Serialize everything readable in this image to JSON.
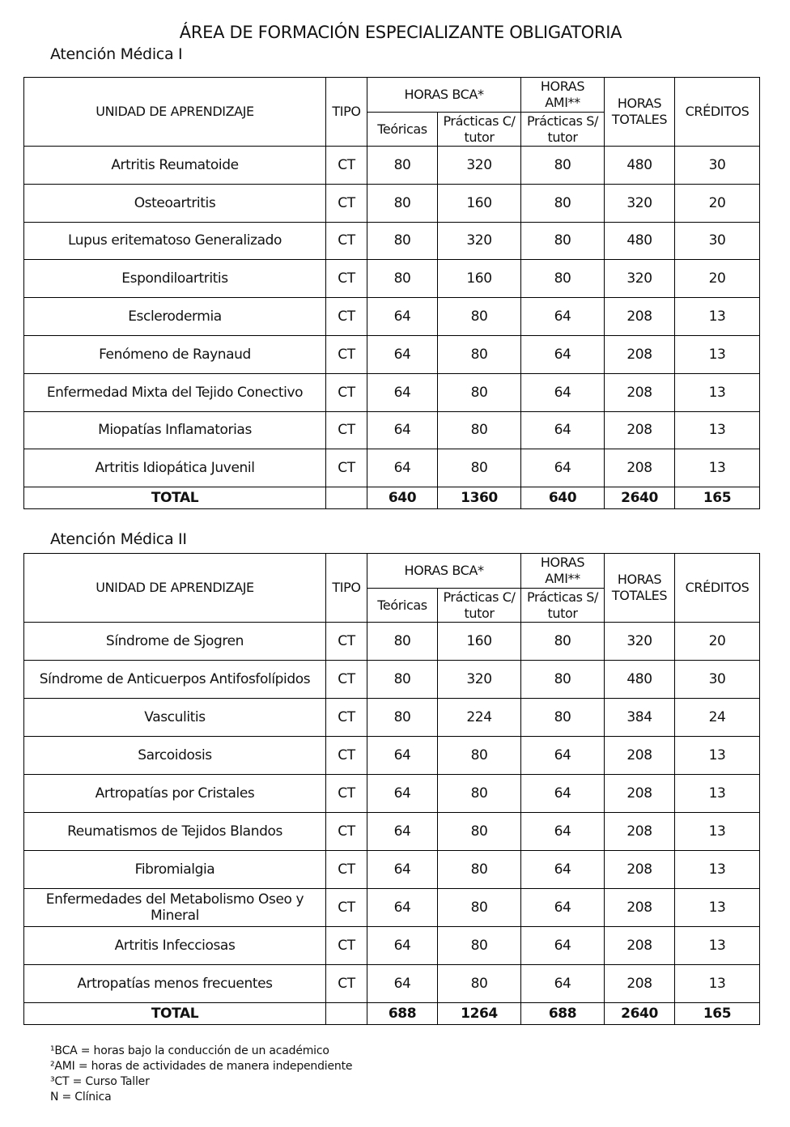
{
  "title": "ÁREA DE FORMACIÓN ESPECIALIZANTE OBLIGATORIA",
  "headers": {
    "unidad": "UNIDAD DE APRENDIZAJE",
    "tipo": "TIPO",
    "horas_bca": "HORAS  BCA*",
    "horas_ami": "HORAS AMI**",
    "horas_totales": "HORAS TOTALES",
    "creditos": "CRÉDITOS",
    "teoricas": "Teóricas",
    "practicas_c": "Prácticas C/ tutor",
    "practicas_s": "Prácticas S/ tutor"
  },
  "sections": [
    {
      "subtitle": "Atención Médica I",
      "rows": [
        [
          "Artritis Reumatoide",
          "CT",
          "80",
          "320",
          "80",
          "480",
          "30"
        ],
        [
          "Osteoartritis",
          "CT",
          "80",
          "160",
          "80",
          "320",
          "20"
        ],
        [
          "Lupus eritematoso Generalizado",
          "CT",
          "80",
          "320",
          "80",
          "480",
          "30"
        ],
        [
          "Espondiloartritis",
          "CT",
          "80",
          "160",
          "80",
          "320",
          "20"
        ],
        [
          "Esclerodermia",
          "CT",
          "64",
          "80",
          "64",
          "208",
          "13"
        ],
        [
          "Fenómeno de Raynaud",
          "CT",
          "64",
          "80",
          "64",
          "208",
          "13"
        ],
        [
          "Enfermedad Mixta del Tejido Conectivo",
          "CT",
          "64",
          "80",
          "64",
          "208",
          "13"
        ],
        [
          "Miopatías Inflamatorias",
          "CT",
          "64",
          "80",
          "64",
          "208",
          "13"
        ],
        [
          "Artritis Idiopática Juvenil",
          "CT",
          "64",
          "80",
          "64",
          "208",
          "13"
        ]
      ],
      "total": [
        "TOTAL",
        "",
        "640",
        "1360",
        "640",
        "2640",
        "165"
      ]
    },
    {
      "subtitle": "Atención Médica II",
      "rows": [
        [
          "Síndrome de Sjogren",
          "CT",
          "80",
          "160",
          "80",
          "320",
          "20"
        ],
        [
          "Síndrome de Anticuerpos Antifosfolípidos",
          "CT",
          "80",
          "320",
          "80",
          "480",
          "30"
        ],
        [
          "Vasculitis",
          "CT",
          "80",
          "224",
          "80",
          "384",
          "24"
        ],
        [
          "Sarcoidosis",
          "CT",
          "64",
          "80",
          "64",
          "208",
          "13"
        ],
        [
          "Artropatías por Cristales",
          "CT",
          "64",
          "80",
          "64",
          "208",
          "13"
        ],
        [
          "Reumatismos de Tejidos Blandos",
          "CT",
          "64",
          "80",
          "64",
          "208",
          "13"
        ],
        [
          "Fibromialgia",
          "CT",
          "64",
          "80",
          "64",
          "208",
          "13"
        ],
        [
          "Enfermedades del Metabolismo Oseo y Mineral",
          "CT",
          "64",
          "80",
          "64",
          "208",
          "13"
        ],
        [
          "Artritis Infecciosas",
          "CT",
          "64",
          "80",
          "64",
          "208",
          "13"
        ],
        [
          "Artropatías menos frecuentes",
          "CT",
          "64",
          "80",
          "64",
          "208",
          "13"
        ]
      ],
      "total": [
        "TOTAL",
        "",
        "688",
        "1264",
        "688",
        "2640",
        "165"
      ]
    }
  ],
  "footnotes": [
    "¹BCA = horas bajo la conducción de un académico",
    "²AMI = horas de actividades de manera independiente",
    "³CT = Curso Taller",
    "N = Clínica"
  ]
}
